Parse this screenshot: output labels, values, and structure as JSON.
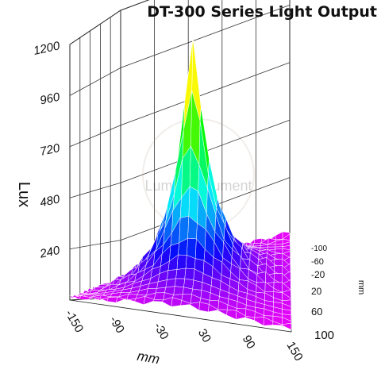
{
  "chart_data": {
    "type": "surface",
    "title": "DT-300 Series Light Output",
    "zlabel": "Lux",
    "xlabel": "mm",
    "ylabel": "mm",
    "zlim": [
      0,
      1200
    ],
    "z_ticks": [
      "240",
      "480",
      "720",
      "960",
      "1200"
    ],
    "x_ticks": [
      "-150",
      "-90",
      "-30",
      "30",
      "90",
      "150"
    ],
    "y_ticks": [
      "-100",
      "-60",
      "-20",
      "20",
      "60",
      "100"
    ],
    "x_range": [
      -150,
      150
    ],
    "y_range": [
      -100,
      100
    ],
    "peak": {
      "x": 0,
      "y": 0,
      "z": 1120
    },
    "grid": true,
    "colormap": "rainbow (purple low to red high)",
    "watermark": "Luma Instrument"
  }
}
